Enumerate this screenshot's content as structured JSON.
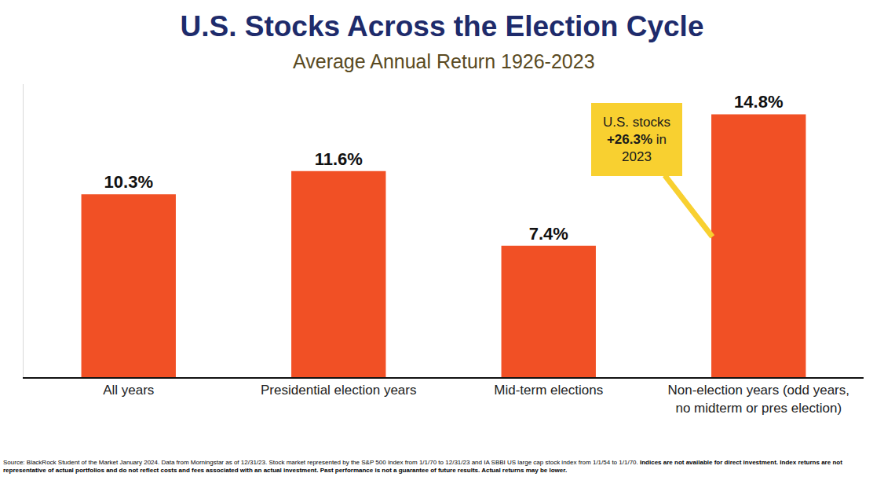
{
  "chart_data": {
    "type": "bar",
    "title": "U.S. Stocks Across the Election Cycle",
    "subtitle": "Average Annual Return 1926-2023",
    "categories": [
      "All years",
      "Presidential election years",
      "Mid-term elections",
      "Non-election years (odd years, no midterm or pres election)"
    ],
    "values": [
      10.3,
      11.6,
      7.4,
      14.8
    ],
    "value_labels": [
      "10.3%",
      "11.6%",
      "7.4%",
      "14.8%"
    ],
    "color": "#F15025",
    "ylim": [
      0,
      16.5
    ],
    "grid": false,
    "data_labels": true,
    "tick_labels": "x",
    "annotations": [
      {
        "text": "U.S. stocks +26.3% in 2023",
        "category": "Non-election years (odd years, no midterm or pres election)"
      }
    ],
    "source": "Source: BlackRock Student of the Market January 2024. Data from Morningstar as of 12/31/23. Stock market represented by the S&P 500 Index from 1/1/70 to 12/31/23 and IA SBBI US large cap stock index from 1/1/54 to 1/1/70.",
    "disclaimer": "Indices are not available for direct investment. Index returns are not representative of actual portfolios and do not reflect costs and fees associated with an actual investment. Past performance is not a guarantee of future results. Actual returns may be lower."
  }
}
